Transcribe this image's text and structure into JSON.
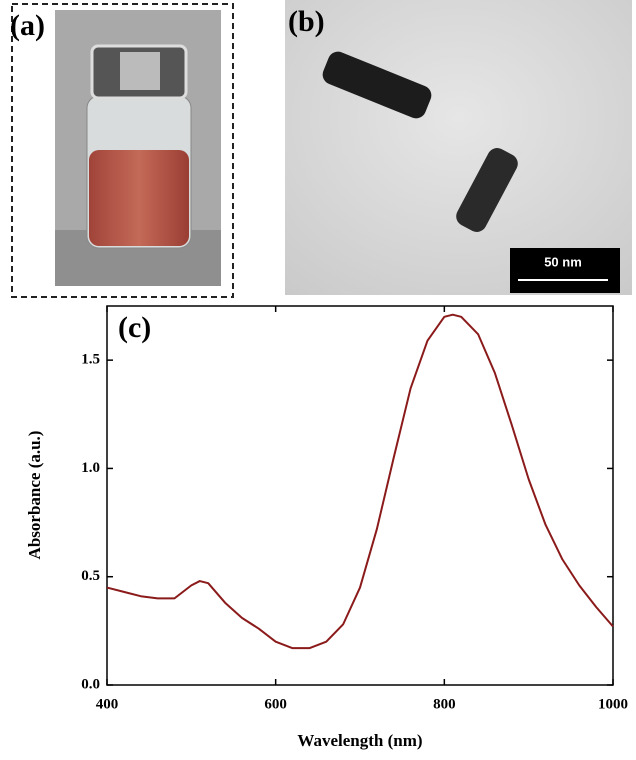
{
  "panels": {
    "a": {
      "label": "(a)"
    },
    "b": {
      "label": "(b)",
      "scale_bar": "50 nm"
    }
  },
  "chart_data": {
    "type": "line",
    "annotation": "(c)",
    "x_label": "Wavelength (nm)",
    "y_label": "Absorbance (a.u.)",
    "x": [
      400,
      420,
      440,
      460,
      480,
      500,
      510,
      520,
      540,
      560,
      580,
      600,
      620,
      640,
      660,
      680,
      700,
      720,
      740,
      760,
      780,
      800,
      810,
      820,
      840,
      860,
      880,
      900,
      920,
      940,
      960,
      980,
      1000
    ],
    "values": [
      0.45,
      0.43,
      0.41,
      0.4,
      0.4,
      0.46,
      0.48,
      0.47,
      0.38,
      0.31,
      0.26,
      0.2,
      0.17,
      0.17,
      0.2,
      0.28,
      0.45,
      0.72,
      1.05,
      1.37,
      1.59,
      1.7,
      1.71,
      1.7,
      1.62,
      1.44,
      1.2,
      0.95,
      0.74,
      0.58,
      0.46,
      0.36,
      0.27
    ],
    "color": "#8b1a1a",
    "xlim": [
      400,
      1000
    ],
    "xticks": [
      400,
      600,
      800,
      1000
    ],
    "ylim": [
      0,
      1.75
    ],
    "yticks": [
      {
        "value": 0,
        "label": "0.0"
      },
      {
        "value": 0.5,
        "label": "0.5"
      },
      {
        "value": 1,
        "label": "1.0"
      },
      {
        "value": 1.5,
        "label": "1.5"
      }
    ],
    "grid": false
  }
}
